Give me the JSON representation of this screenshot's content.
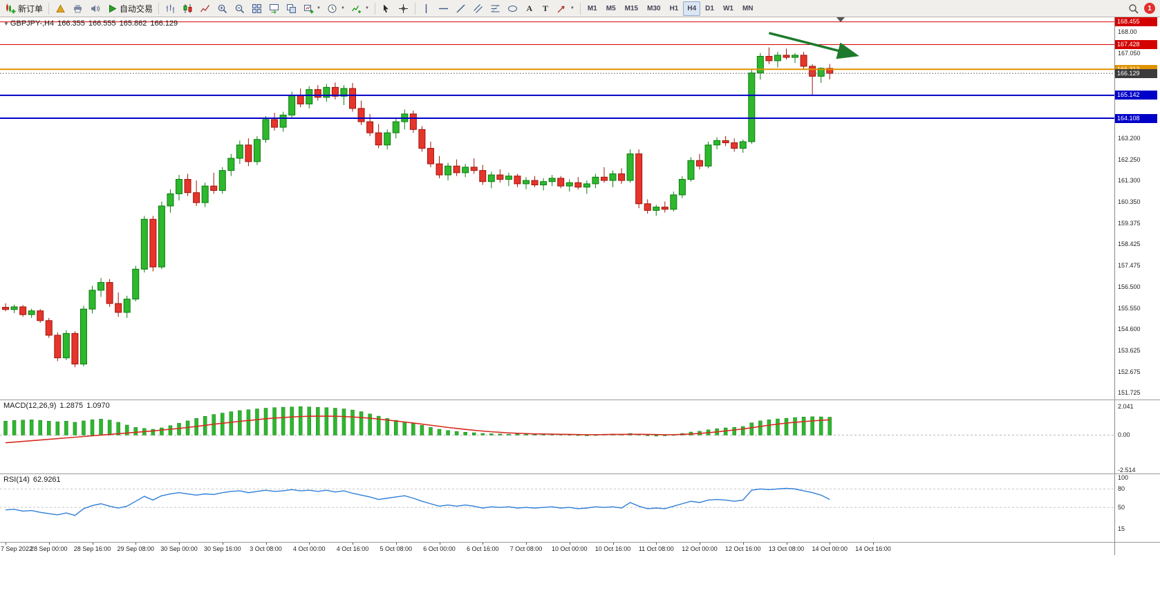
{
  "toolbar": {
    "new_order_label": "新订单",
    "autotrade_label": "自动交易",
    "timeframes": [
      "M1",
      "M5",
      "M15",
      "M30",
      "H1",
      "H4",
      "D1",
      "W1",
      "MN"
    ],
    "active_timeframe": "H4",
    "notification_count": "1"
  },
  "symbol_header": {
    "symbol": "GBPJPY-,H4",
    "open": "166.355",
    "high": "166.555",
    "low": "165.862",
    "close": "166.129"
  },
  "indicators": {
    "macd": {
      "label": "MACD(12,26,9)",
      "value_main": "1.2875",
      "value_signal": "1.0970",
      "axis": [
        "2.041",
        "0.00",
        "-2.514"
      ]
    },
    "rsi": {
      "label": "RSI(14)",
      "value": "62.9261",
      "axis": [
        "100",
        "80",
        "50",
        "15"
      ]
    }
  },
  "price_axis": {
    "ticks": [
      {
        "value": 168.0,
        "label": "168.00"
      },
      {
        "value": 167.05,
        "label": "167.050"
      },
      {
        "value": 163.2,
        "label": "163.200"
      },
      {
        "value": 162.25,
        "label": "162.250"
      },
      {
        "value": 161.3,
        "label": "161.300"
      },
      {
        "value": 160.35,
        "label": "160.350"
      },
      {
        "value": 159.375,
        "label": "159.375"
      },
      {
        "value": 158.425,
        "label": "158.425"
      },
      {
        "value": 157.475,
        "label": "157.475"
      },
      {
        "value": 156.5,
        "label": "156.500"
      },
      {
        "value": 155.55,
        "label": "155.550"
      },
      {
        "value": 154.6,
        "label": "154.600"
      },
      {
        "value": 153.625,
        "label": "153.625"
      },
      {
        "value": 152.675,
        "label": "152.675"
      },
      {
        "value": 151.725,
        "label": "151.725"
      }
    ],
    "badges": [
      {
        "value": 168.455,
        "label": "168.455",
        "color": "#d40000"
      },
      {
        "value": 167.428,
        "label": "167.428",
        "color": "#d40000"
      },
      {
        "value": 166.313,
        "label": "166.313",
        "color": "#e09200"
      },
      {
        "value": 166.129,
        "label": "166.129",
        "color": "#3c3c3c"
      },
      {
        "value": 165.142,
        "label": "165.142",
        "color": "#0000c8"
      },
      {
        "value": 164.108,
        "label": "164.108",
        "color": "#0000c8"
      }
    ]
  },
  "colors": {
    "up_body": "#2db82d",
    "up_border": "#0c7a10",
    "down_body": "#e6352b",
    "down_border": "#9e140c",
    "macd_histogram": "#2db82d",
    "macd_signal": "#d62b1f",
    "rsi_line": "#2f7ed8",
    "line_red": "#d40000",
    "line_orange": "#e09200",
    "line_blue": "#0000c8",
    "current_price_badge": "#3c3c3c",
    "arrow_green": "#1d7a2c"
  },
  "chart_data": {
    "type": "candlestick",
    "symbol": "GBPJPY-",
    "timeframe": "H4",
    "title": "GBPJPY-,H4 166.355 166.555 165.862 166.129",
    "price_range": [
      151.42,
      168.66
    ],
    "candles": [
      [
        155.58,
        155.76,
        155.4,
        155.48
      ],
      [
        155.48,
        155.7,
        155.32,
        155.6
      ],
      [
        155.6,
        155.68,
        155.15,
        155.25
      ],
      [
        155.25,
        155.52,
        155.1,
        155.42
      ],
      [
        155.42,
        155.5,
        154.88,
        154.98
      ],
      [
        154.98,
        155.1,
        154.2,
        154.32
      ],
      [
        154.32,
        154.45,
        153.15,
        153.3
      ],
      [
        153.3,
        154.55,
        153.2,
        154.4
      ],
      [
        154.4,
        154.5,
        152.88,
        153.02
      ],
      [
        153.02,
        155.65,
        152.92,
        155.5
      ],
      [
        155.5,
        156.55,
        155.3,
        156.35
      ],
      [
        156.35,
        156.9,
        156.05,
        156.7
      ],
      [
        156.7,
        156.85,
        155.6,
        155.75
      ],
      [
        155.75,
        156.25,
        155.15,
        155.35
      ],
      [
        155.35,
        156.1,
        155.1,
        155.95
      ],
      [
        155.95,
        157.45,
        155.85,
        157.3
      ],
      [
        157.3,
        159.7,
        157.15,
        159.55
      ],
      [
        159.55,
        159.7,
        157.2,
        157.4
      ],
      [
        157.4,
        160.35,
        157.3,
        160.15
      ],
      [
        160.15,
        160.9,
        159.85,
        160.7
      ],
      [
        160.7,
        161.55,
        160.4,
        161.35
      ],
      [
        161.35,
        161.6,
        160.6,
        160.75
      ],
      [
        160.75,
        161.3,
        160.15,
        160.3
      ],
      [
        160.3,
        161.2,
        160.1,
        161.05
      ],
      [
        161.05,
        161.65,
        160.7,
        160.85
      ],
      [
        160.85,
        161.9,
        160.7,
        161.75
      ],
      [
        161.75,
        162.5,
        161.5,
        162.3
      ],
      [
        162.3,
        163.1,
        162.05,
        162.9
      ],
      [
        162.9,
        163.2,
        161.95,
        162.15
      ],
      [
        162.15,
        163.3,
        162.0,
        163.15
      ],
      [
        163.15,
        164.2,
        163.0,
        164.05
      ],
      [
        164.05,
        164.35,
        163.55,
        163.7
      ],
      [
        163.7,
        164.4,
        163.5,
        164.25
      ],
      [
        164.25,
        165.3,
        164.1,
        165.15
      ],
      [
        165.15,
        165.45,
        164.6,
        164.75
      ],
      [
        164.75,
        165.55,
        164.55,
        165.4
      ],
      [
        165.4,
        165.6,
        164.9,
        165.05
      ],
      [
        165.05,
        165.65,
        164.85,
        165.5
      ],
      [
        165.5,
        165.72,
        164.95,
        165.1
      ],
      [
        165.1,
        165.6,
        164.7,
        165.45
      ],
      [
        165.45,
        165.7,
        164.4,
        164.55
      ],
      [
        164.55,
        164.9,
        163.8,
        163.95
      ],
      [
        163.95,
        164.3,
        163.3,
        163.45
      ],
      [
        163.45,
        163.85,
        162.75,
        162.9
      ],
      [
        162.9,
        163.6,
        162.7,
        163.45
      ],
      [
        163.45,
        164.1,
        163.2,
        163.95
      ],
      [
        163.95,
        164.5,
        163.6,
        164.3
      ],
      [
        164.3,
        164.45,
        163.45,
        163.6
      ],
      [
        163.6,
        163.75,
        162.6,
        162.75
      ],
      [
        162.75,
        163.05,
        161.9,
        162.05
      ],
      [
        162.05,
        162.4,
        161.4,
        161.55
      ],
      [
        161.55,
        162.1,
        161.3,
        161.95
      ],
      [
        161.95,
        162.25,
        161.5,
        161.65
      ],
      [
        161.65,
        162.05,
        161.45,
        161.9
      ],
      [
        161.9,
        162.3,
        161.6,
        161.75
      ],
      [
        161.75,
        162.0,
        161.1,
        161.25
      ],
      [
        161.25,
        161.7,
        160.95,
        161.55
      ],
      [
        161.55,
        161.8,
        161.2,
        161.35
      ],
      [
        161.35,
        161.65,
        161.05,
        161.5
      ],
      [
        161.5,
        161.6,
        161.0,
        161.15
      ],
      [
        161.15,
        161.45,
        160.9,
        161.3
      ],
      [
        161.3,
        161.5,
        161.0,
        161.1
      ],
      [
        161.1,
        161.4,
        160.85,
        161.25
      ],
      [
        161.25,
        161.55,
        161.05,
        161.4
      ],
      [
        161.4,
        161.5,
        160.95,
        161.05
      ],
      [
        161.05,
        161.35,
        160.8,
        161.2
      ],
      [
        161.2,
        161.45,
        160.9,
        161.0
      ],
      [
        161.0,
        161.3,
        160.7,
        161.15
      ],
      [
        161.15,
        161.6,
        160.95,
        161.45
      ],
      [
        161.45,
        161.9,
        161.2,
        161.3
      ],
      [
        161.3,
        161.75,
        161.0,
        161.6
      ],
      [
        161.6,
        161.85,
        161.15,
        161.3
      ],
      [
        161.3,
        162.7,
        161.2,
        162.5
      ],
      [
        162.5,
        162.7,
        160.05,
        160.25
      ],
      [
        160.25,
        160.45,
        159.8,
        159.95
      ],
      [
        159.95,
        160.2,
        159.7,
        160.1
      ],
      [
        160.1,
        160.35,
        159.85,
        160.0
      ],
      [
        160.0,
        160.8,
        159.9,
        160.65
      ],
      [
        160.65,
        161.5,
        160.5,
        161.35
      ],
      [
        161.35,
        162.35,
        161.25,
        162.2
      ],
      [
        162.2,
        162.5,
        161.8,
        161.95
      ],
      [
        161.95,
        163.05,
        161.85,
        162.9
      ],
      [
        162.9,
        163.25,
        162.7,
        163.1
      ],
      [
        163.1,
        163.3,
        162.85,
        163.0
      ],
      [
        163.0,
        163.2,
        162.6,
        162.75
      ],
      [
        162.75,
        163.15,
        162.55,
        163.05
      ],
      [
        163.05,
        166.3,
        162.95,
        166.15
      ],
      [
        166.15,
        167.05,
        165.85,
        166.9
      ],
      [
        166.9,
        167.3,
        166.55,
        166.7
      ],
      [
        166.7,
        167.1,
        166.4,
        166.95
      ],
      [
        166.95,
        167.25,
        166.75,
        166.85
      ],
      [
        166.85,
        167.05,
        166.6,
        166.95
      ],
      [
        166.95,
        167.1,
        166.3,
        166.45
      ],
      [
        166.45,
        166.55,
        165.14,
        166.0
      ],
      [
        166.0,
        166.4,
        165.7,
        166.36
      ],
      [
        166.355,
        166.555,
        165.862,
        166.129
      ]
    ],
    "horizontal_lines": [
      {
        "price": 168.455,
        "color": "#d40000",
        "style": "solid",
        "width": 1
      },
      {
        "price": 167.428,
        "color": "#d40000",
        "style": "solid",
        "width": 1
      },
      {
        "price": 166.313,
        "color": "#e09200",
        "style": "solid",
        "width": 2
      },
      {
        "price": 166.129,
        "color": "#777777",
        "style": "dotted",
        "width": 1
      },
      {
        "price": 165.142,
        "color": "#0000c8",
        "style": "solid",
        "width": 2
      },
      {
        "price": 164.108,
        "color": "#0000c8",
        "style": "solid",
        "width": 2
      }
    ],
    "arrow_annotation": {
      "from_candle": 88,
      "from_price": 167.95,
      "to_candle": 98,
      "to_price": 166.95,
      "color": "#1d7a2c"
    },
    "macd": {
      "params": "12,26,9",
      "scale": [
        -2.75,
        2.5
      ],
      "histogram": [
        1.0,
        1.05,
        1.08,
        1.1,
        1.06,
        1.0,
        0.96,
        1.0,
        0.92,
        1.02,
        1.1,
        1.15,
        1.08,
        0.92,
        0.72,
        0.55,
        0.48,
        0.42,
        0.52,
        0.68,
        0.85,
        1.02,
        1.2,
        1.35,
        1.48,
        1.58,
        1.68,
        1.76,
        1.82,
        1.88,
        1.93,
        1.97,
        2.0,
        2.02,
        2.04,
        2.02,
        1.99,
        1.97,
        1.93,
        1.88,
        1.8,
        1.68,
        1.52,
        1.36,
        1.2,
        1.06,
        0.94,
        0.84,
        0.7,
        0.55,
        0.42,
        0.33,
        0.26,
        0.21,
        0.17,
        0.12,
        0.1,
        0.08,
        0.07,
        0.08,
        0.07,
        0.05,
        0.06,
        0.08,
        0.06,
        0.04,
        0.02,
        -0.03,
        0.02,
        0.05,
        0.08,
        0.05,
        0.12,
        0.06,
        -0.04,
        -0.07,
        -0.04,
        0.03,
        0.12,
        0.22,
        0.28,
        0.38,
        0.46,
        0.52,
        0.56,
        0.62,
        0.88,
        1.02,
        1.1,
        1.16,
        1.21,
        1.26,
        1.3,
        1.32,
        1.31,
        1.2875
      ],
      "signal": [
        -0.55,
        -0.5,
        -0.45,
        -0.4,
        -0.35,
        -0.3,
        -0.25,
        -0.2,
        -0.15,
        -0.1,
        -0.05,
        0.0,
        0.05,
        0.1,
        0.15,
        0.2,
        0.25,
        0.3,
        0.36,
        0.42,
        0.48,
        0.55,
        0.62,
        0.7,
        0.78,
        0.85,
        0.92,
        0.99,
        1.05,
        1.11,
        1.17,
        1.22,
        1.26,
        1.3,
        1.33,
        1.35,
        1.36,
        1.36,
        1.35,
        1.33,
        1.3,
        1.26,
        1.21,
        1.15,
        1.08,
        1.01,
        0.94,
        0.87,
        0.79,
        0.71,
        0.63,
        0.55,
        0.48,
        0.41,
        0.35,
        0.29,
        0.24,
        0.2,
        0.16,
        0.13,
        0.11,
        0.09,
        0.08,
        0.07,
        0.06,
        0.05,
        0.04,
        0.03,
        0.03,
        0.04,
        0.05,
        0.05,
        0.06,
        0.06,
        0.05,
        0.04,
        0.03,
        0.03,
        0.05,
        0.08,
        0.12,
        0.17,
        0.23,
        0.3,
        0.37,
        0.44,
        0.53,
        0.62,
        0.71,
        0.79,
        0.86,
        0.92,
        0.97,
        1.02,
        1.06,
        1.097
      ]
    },
    "rsi": {
      "period": 14,
      "scale": [
        -6,
        104
      ],
      "levels": [
        80,
        50
      ],
      "values": [
        46,
        47,
        44,
        45,
        42,
        40,
        38,
        41,
        37,
        48,
        53,
        56,
        52,
        49,
        52,
        60,
        68,
        62,
        69,
        72,
        74,
        72,
        70,
        72,
        71,
        74,
        76,
        77,
        74,
        76,
        78,
        76,
        77,
        79,
        77,
        78,
        76,
        78,
        75,
        77,
        73,
        70,
        67,
        63,
        65,
        67,
        69,
        65,
        60,
        56,
        52,
        54,
        52,
        54,
        52,
        49,
        51,
        50,
        51,
        49,
        50,
        49,
        50,
        51,
        49,
        50,
        48,
        49,
        51,
        50,
        51,
        49,
        58,
        52,
        48,
        49,
        48,
        52,
        56,
        60,
        58,
        62,
        63,
        62,
        60,
        62,
        78,
        80,
        79,
        80,
        81,
        80,
        77,
        74,
        70,
        62.93
      ]
    },
    "time_labels": [
      "7 Sep 2022",
      "28 Sep 00:00",
      "28 Sep 16:00",
      "29 Sep 08:00",
      "30 Sep 00:00",
      "30 Sep 16:00",
      "3 Oct 08:00",
      "4 Oct 00:00",
      "4 Oct 16:00",
      "5 Oct 08:00",
      "6 Oct 00:00",
      "6 Oct 16:00",
      "7 Oct 08:00",
      "10 Oct 00:00",
      "10 Oct 16:00",
      "11 Oct 08:00",
      "12 Oct 00:00",
      "12 Oct 16:00",
      "13 Oct 08:00",
      "14 Oct 00:00",
      "14 Oct 16:00"
    ]
  }
}
